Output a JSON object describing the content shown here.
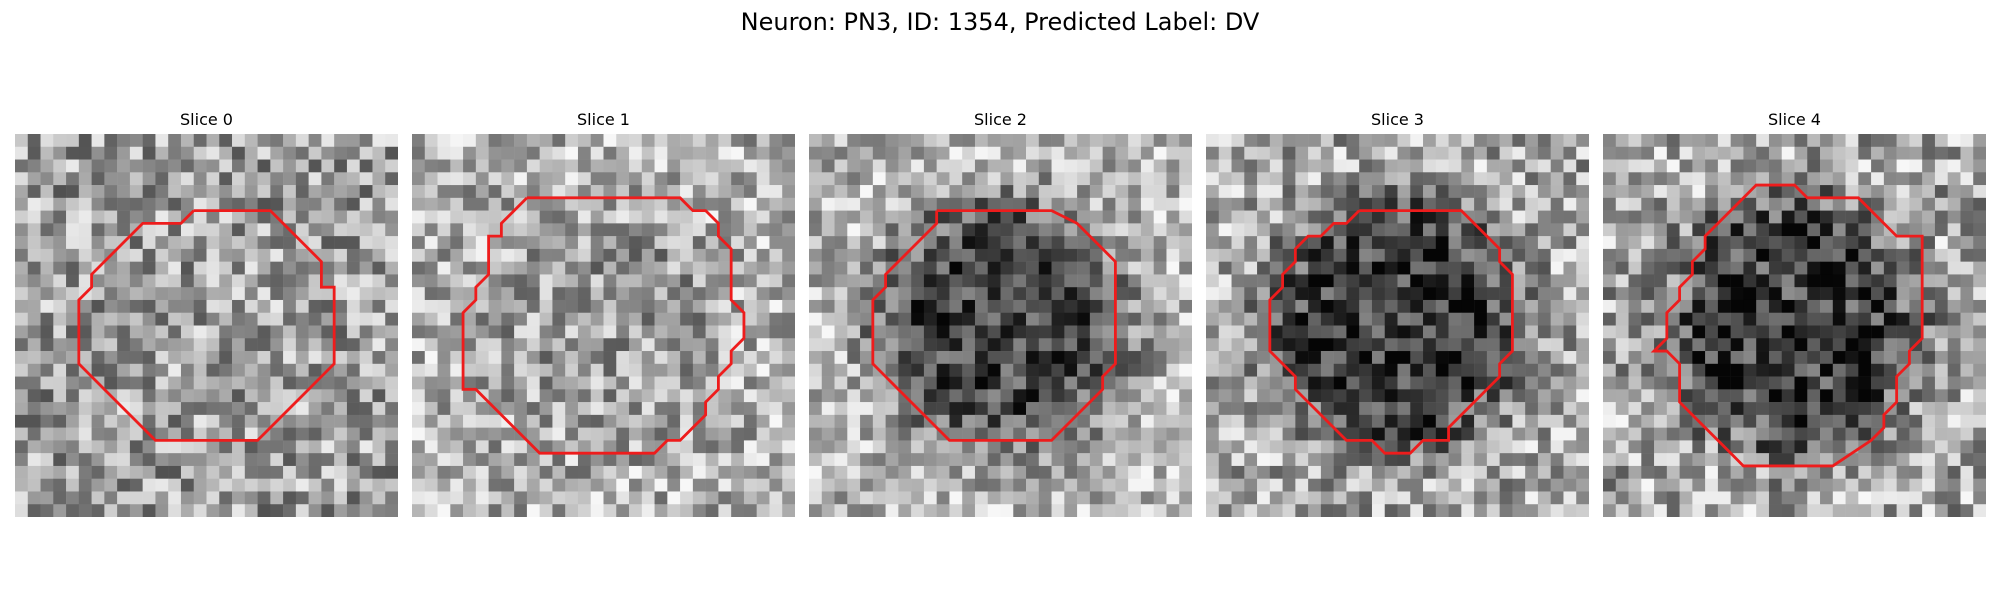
{
  "figure": {
    "title": "Neuron: PN3, ID: 1354, Predicted Label: DV"
  },
  "panels": [
    {
      "title": "Slice 0"
    },
    {
      "title": "Slice 1"
    },
    {
      "title": "Slice 2"
    },
    {
      "title": "Slice 3"
    },
    {
      "title": "Slice 4"
    }
  ],
  "colors": {
    "contour": "#ee1c1c",
    "background": "#ffffff"
  }
}
